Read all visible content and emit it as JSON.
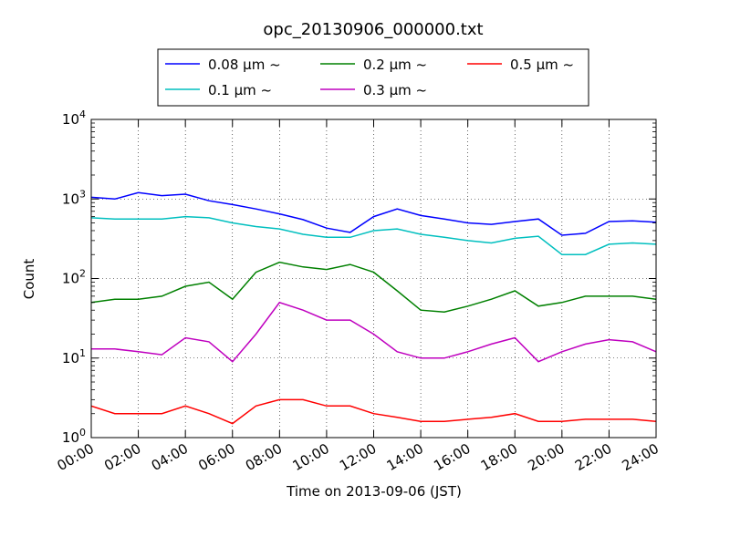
{
  "chart_data": {
    "type": "line",
    "title": "opc_20130906_000000.txt",
    "xlabel": "Time on 2013-09-06 (JST)",
    "ylabel": "Count",
    "yscale": "log",
    "ylim": [
      1,
      10000
    ],
    "xlim": [
      "00:00",
      "24:00"
    ],
    "grid": true,
    "legend_placement": "top",
    "x_ticks": [
      "00:00",
      "02:00",
      "04:00",
      "06:00",
      "08:00",
      "10:00",
      "12:00",
      "14:00",
      "16:00",
      "18:00",
      "20:00",
      "22:00",
      "24:00"
    ],
    "y_ticks": [
      {
        "value": 1,
        "base": "10",
        "exp": "0"
      },
      {
        "value": 10,
        "base": "10",
        "exp": "1"
      },
      {
        "value": 100,
        "base": "10",
        "exp": "2"
      },
      {
        "value": 1000,
        "base": "10",
        "exp": "3"
      },
      {
        "value": 10000,
        "base": "10",
        "exp": "4"
      }
    ],
    "x": [
      "00:00",
      "01:00",
      "02:00",
      "03:00",
      "04:00",
      "05:00",
      "06:00",
      "07:00",
      "08:00",
      "09:00",
      "10:00",
      "11:00",
      "12:00",
      "13:00",
      "14:00",
      "15:00",
      "16:00",
      "17:00",
      "18:00",
      "19:00",
      "20:00",
      "21:00",
      "22:00",
      "23:00",
      "24:00"
    ],
    "series": [
      {
        "name": "0.08 μm ~",
        "color": "#0000ff",
        "values": [
          1050,
          1000,
          1200,
          1100,
          1150,
          950,
          850,
          750,
          650,
          550,
          430,
          380,
          600,
          750,
          620,
          560,
          500,
          480,
          520,
          560,
          350,
          370,
          520,
          530,
          510
        ]
      },
      {
        "name": "0.1 μm ~",
        "color": "#00bfbf",
        "values": [
          580,
          560,
          560,
          560,
          600,
          580,
          500,
          450,
          420,
          360,
          330,
          330,
          400,
          420,
          360,
          330,
          300,
          280,
          320,
          340,
          200,
          200,
          270,
          280,
          270
        ]
      },
      {
        "name": "0.2 μm ~",
        "color": "#008000",
        "values": [
          50,
          55,
          55,
          60,
          80,
          90,
          55,
          120,
          160,
          140,
          130,
          150,
          120,
          70,
          40,
          38,
          45,
          55,
          70,
          45,
          50,
          60,
          60,
          60,
          55
        ]
      },
      {
        "name": "0.3 μm ~",
        "color": "#bf00bf",
        "values": [
          13,
          13,
          12,
          11,
          18,
          16,
          9,
          20,
          50,
          40,
          30,
          30,
          20,
          12,
          10,
          10,
          12,
          15,
          18,
          9,
          12,
          15,
          17,
          16,
          12
        ]
      },
      {
        "name": "0.5 μm ~",
        "color": "#ff0000",
        "values": [
          2.5,
          2,
          2,
          2,
          2.5,
          2,
          1.5,
          2.5,
          3,
          3,
          2.5,
          2.5,
          2,
          1.8,
          1.6,
          1.6,
          1.7,
          1.8,
          2,
          1.6,
          1.6,
          1.7,
          1.7,
          1.7,
          1.6
        ]
      }
    ]
  }
}
